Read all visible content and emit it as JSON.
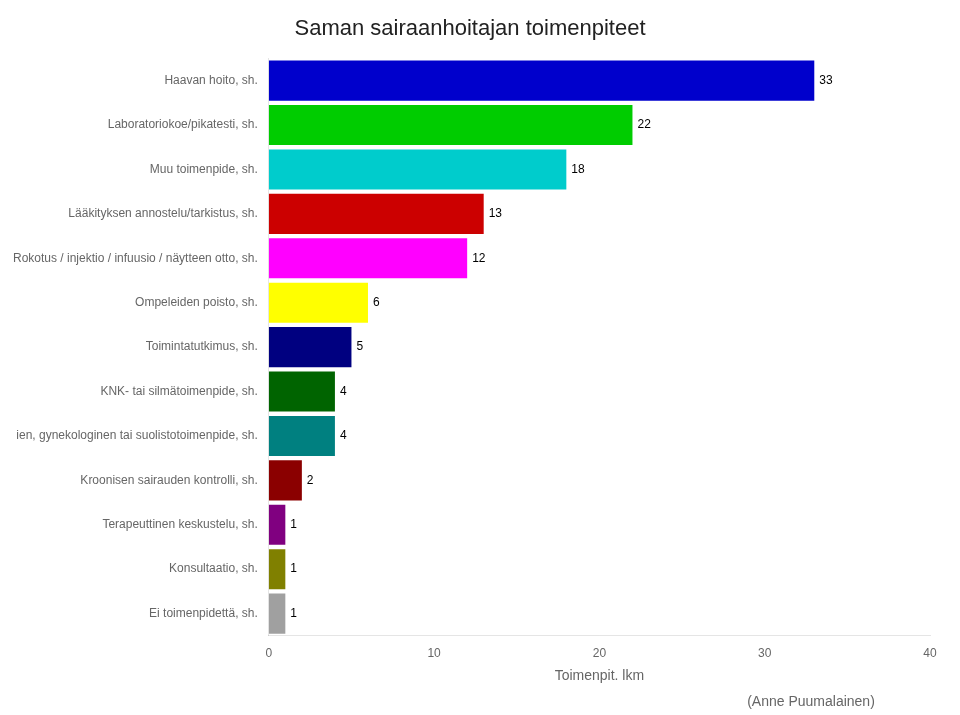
{
  "chart_data": {
    "type": "bar",
    "orientation": "horizontal",
    "title": "Saman sairaanhoitajan toimenpiteet",
    "categories": [
      "Haavan hoito, sh.",
      "Laboratoriokoe/pikatesti, sh.",
      "Muu toimenpide, sh.",
      "Lääkityksen annostelu/tarkistus, sh.",
      "Rokotus / injektio / infuusio / näytteen otto, sh.",
      "Ompeleiden poisto, sh.",
      "Toimintatutkimus, sh.",
      "KNK- tai silmätoimenpide, sh.",
      "ien, gynekologinen tai suolistotoimenpide, sh.",
      "Kroonisen sairauden kontrolli, sh.",
      "Terapeuttinen keskustelu, sh.",
      "Konsultaatio, sh.",
      "Ei toimenpidettä, sh."
    ],
    "values": [
      33,
      22,
      18,
      13,
      12,
      6,
      5,
      4,
      4,
      2,
      1,
      1,
      1
    ],
    "colors": [
      "#0000CC",
      "#00CC00",
      "#00CCCC",
      "#CC0000",
      "#FF00FF",
      "#FFFF00",
      "#000080",
      "#006400",
      "#008080",
      "#8B0000",
      "#800080",
      "#808000",
      "#A0A0A0"
    ],
    "xlabel": "Toimenpit. lkm",
    "annotations": [
      "(Anne Puumalainen)"
    ],
    "xlim": [
      0,
      40
    ],
    "xticks": [
      0,
      10,
      20,
      30,
      40
    ],
    "grid": false,
    "data_labels": true
  }
}
